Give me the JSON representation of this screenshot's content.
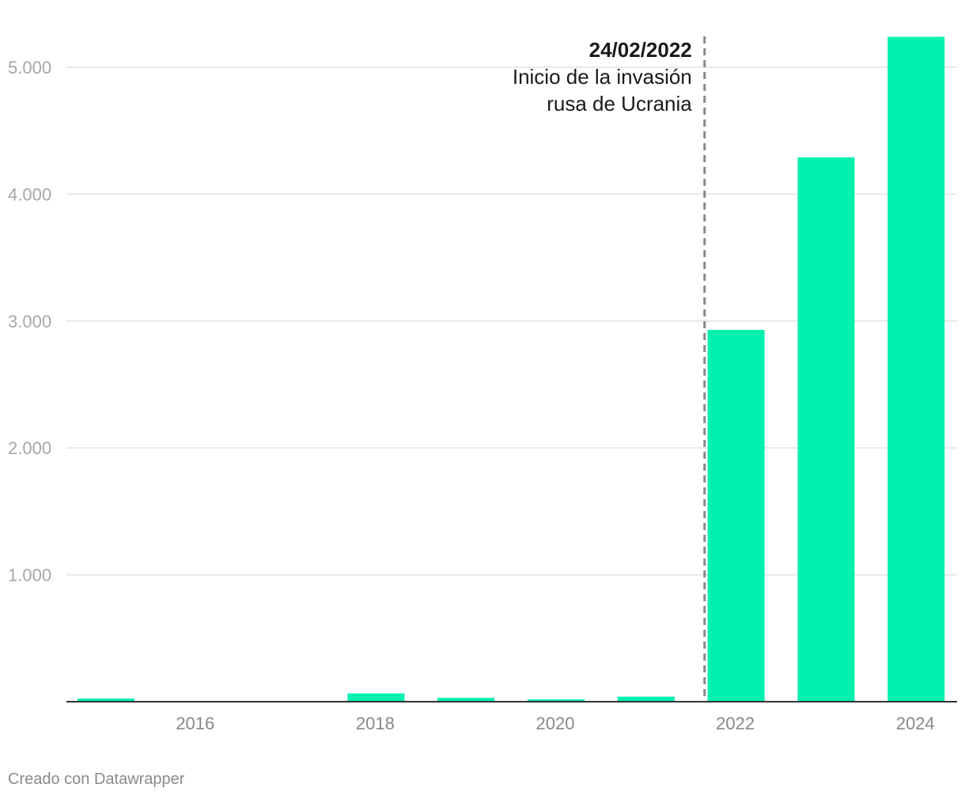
{
  "chart_data": {
    "type": "bar",
    "x": [
      2015,
      2016,
      2017,
      2018,
      2019,
      2020,
      2021,
      2022,
      2023,
      2024
    ],
    "values": [
      25,
      0,
      0,
      65,
      30,
      18,
      40,
      2930,
      4290,
      5240
    ],
    "ylim": [
      0,
      5300
    ],
    "yticks": [
      1000,
      2000,
      3000,
      4000,
      5000
    ],
    "ytick_labels": [
      "1.000",
      "2.000",
      "3.000",
      "4.000",
      "5.000"
    ],
    "xticks": [
      2016,
      2018,
      2020,
      2022,
      2024
    ],
    "xtick_labels": [
      "2016",
      "2018",
      "2020",
      "2022",
      "2024"
    ],
    "grid": true,
    "bar_color": "#00f0b0",
    "annotation": {
      "x": 2021.65,
      "date": "24/02/2022",
      "lines": [
        "Inicio de la invasión",
        "rusa de Ucrania"
      ]
    }
  },
  "credit": "Creado con Datawrapper"
}
